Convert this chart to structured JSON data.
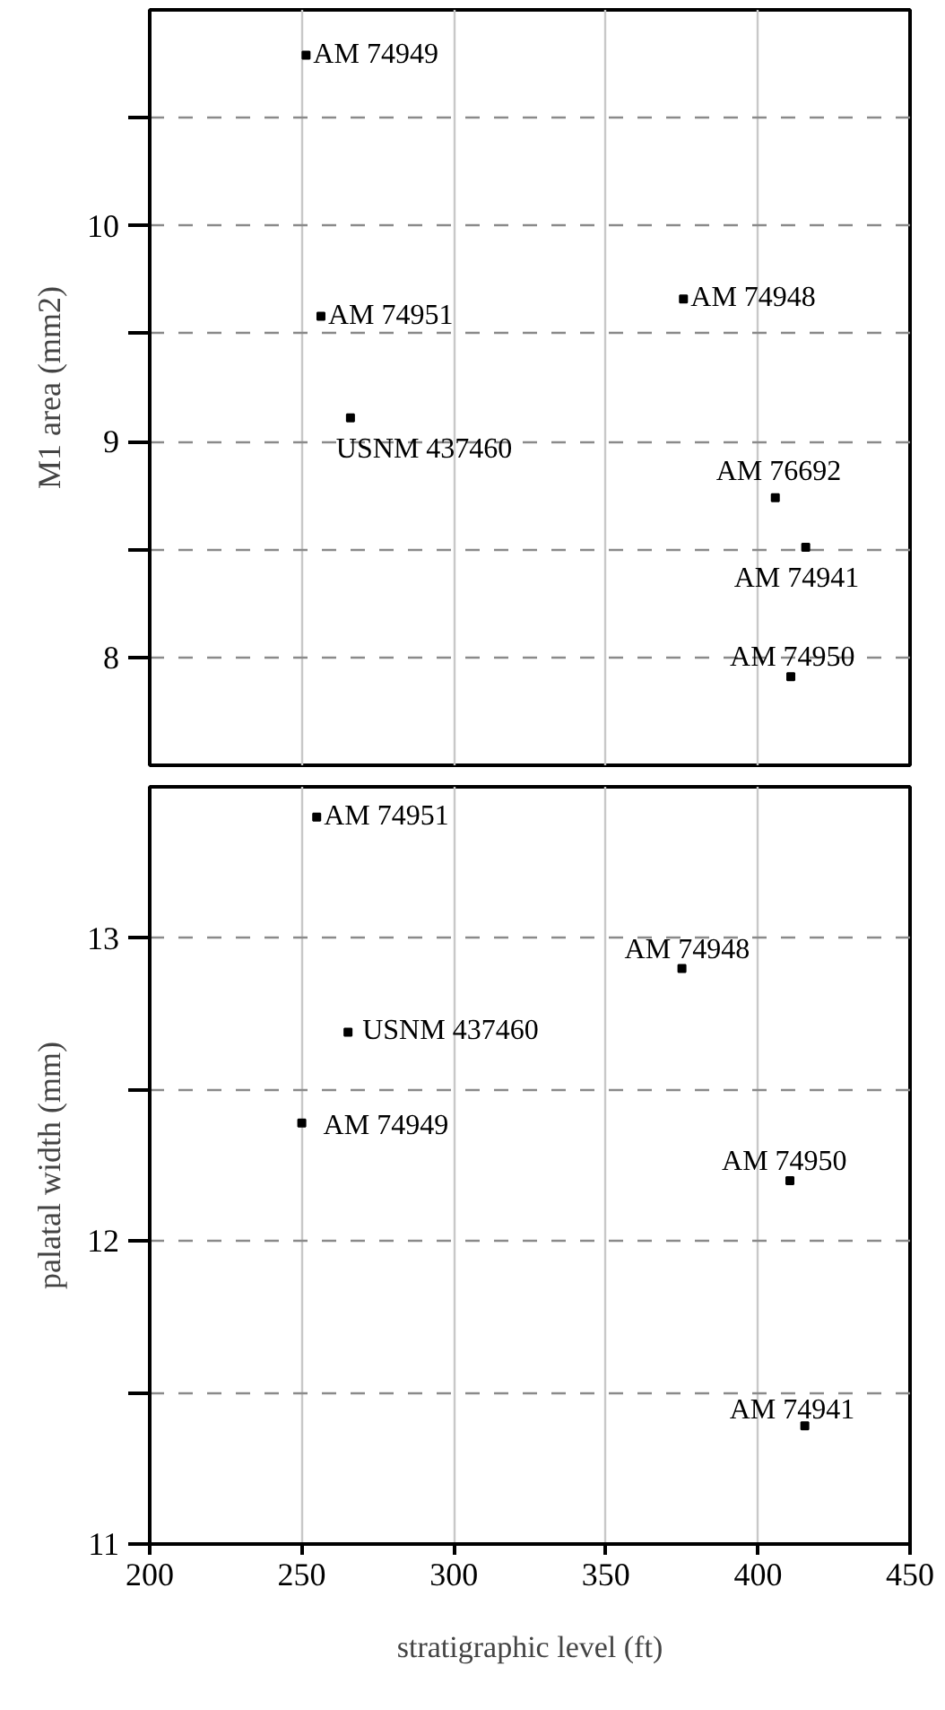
{
  "chart_data": [
    {
      "type": "scatter",
      "ylabel": "M1 area (mm2)",
      "x": [
        251.4,
        256.3,
        266,
        375.5,
        405.7,
        415.7,
        410.8
      ],
      "values": [
        10.79,
        9.58,
        9.11,
        9.66,
        8.74,
        8.51,
        7.91
      ],
      "color": "#000000",
      "marker": "square",
      "xlim": [
        200,
        450
      ],
      "ylim": [
        7.5,
        11
      ],
      "xticks": [
        200,
        250,
        300,
        350,
        400,
        450
      ],
      "yticks": [
        8,
        {
          "value": 8.5,
          "label": null
        },
        9,
        {
          "value": 9.5,
          "label": null
        },
        10,
        {
          "value": 10.5,
          "label": null
        }
      ],
      "grid": true,
      "tick_labels": "y",
      "annotations": [
        {
          "text": "AM 74949",
          "x": 251.4,
          "y": 10.79
        },
        {
          "text": "AM 74951",
          "x": 256.3,
          "y": 9.58
        },
        {
          "text": "USNM 437460",
          "x": 266,
          "y": 9.11
        },
        {
          "text": "AM 74948",
          "x": 375.5,
          "y": 9.66
        },
        {
          "text": "AM 76692",
          "x": 405.7,
          "y": 8.74
        },
        {
          "text": "AM 74941",
          "x": 415.7,
          "y": 8.51
        },
        {
          "text": "AM 74950",
          "x": 410.8,
          "y": 7.91
        }
      ]
    },
    {
      "type": "scatter",
      "xlabel": "stratigraphic level (ft)",
      "ylabel": "palatal width (mm)",
      "x": [
        254.9,
        375,
        265.2,
        250,
        410.5,
        415.4
      ],
      "values": [
        13.4,
        12.9,
        12.69,
        12.39,
        12.2,
        11.39
      ],
      "color": "#000000",
      "marker": "square",
      "xlim": [
        200,
        450
      ],
      "ylim": [
        11,
        13.5
      ],
      "xticks": [
        200,
        250,
        300,
        350,
        400,
        450
      ],
      "yticks": [
        11,
        {
          "value": 11.5,
          "label": null
        },
        12,
        {
          "value": 12.5,
          "label": null
        },
        13
      ],
      "grid": true,
      "annotations": [
        {
          "text": "AM 74951",
          "x": 254.9,
          "y": 13.4
        },
        {
          "text": "AM 74948",
          "x": 375,
          "y": 12.9
        },
        {
          "text": "USNM 437460",
          "x": 265.2,
          "y": 12.69
        },
        {
          "text": "AM 74949",
          "x": 250,
          "y": 12.39
        },
        {
          "text": "AM 74950",
          "x": 410.5,
          "y": 12.2
        },
        {
          "text": "AM 74941",
          "x": 415.4,
          "y": 11.39
        }
      ]
    }
  ]
}
